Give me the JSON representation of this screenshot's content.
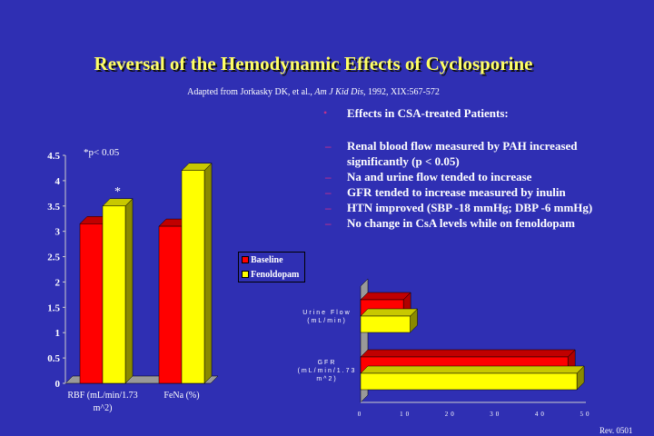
{
  "title": "Reversal of the Hemodynamic Effects of Cyclosporine",
  "citation": {
    "prefix": "Adapted from Jorkasky DK, et al., ",
    "journal": "Am J Kid Dis",
    "suffix": ", 1992, XIX:567-572"
  },
  "heading": "Effects in CSA-treated Patients:",
  "bullets": [
    "Renal blood flow measured by PAH increased significantly (p < 0.05)",
    "Na and urine flow tended to increase",
    "GFR tended to increase measured by inulin",
    "HTN improved (SBP -18 mmHg; DBP -6 mmHg)",
    "No change in CsA levels while on fenoldopam"
  ],
  "footer": "Rev. 0501",
  "colors": {
    "baseline": "#ff0000",
    "fenoldopam": "#ffff00",
    "background": "#2f2fb3"
  },
  "chart_data": [
    {
      "type": "bar",
      "orientation": "vertical",
      "note": "*p< 0.05",
      "categories": [
        "RBF (mL/min/1.73 m^2)",
        "FeNa (%)"
      ],
      "series": [
        {
          "name": "Baseline",
          "values": [
            3.15,
            3.1
          ]
        },
        {
          "name": "Fenoldopam",
          "values": [
            3.5,
            4.2
          ]
        }
      ],
      "annotations": [
        {
          "category": "RBF (mL/min/1.73 m^2)",
          "series": "Fenoldopam",
          "text": "*"
        }
      ],
      "ylim": [
        0,
        4.5
      ],
      "yticks": [
        "0",
        "0.5",
        "1",
        "1.5",
        "2",
        "2.5",
        "3",
        "3.5",
        "4",
        "4.5"
      ],
      "legend": {
        "position": "right",
        "entries": [
          "Baseline",
          "Fenoldopam"
        ]
      }
    },
    {
      "type": "bar",
      "orientation": "horizontal",
      "categories": [
        "Urine Flow (mL/min)",
        "GFR (mL/min/1.73 m^2)"
      ],
      "series": [
        {
          "name": "Baseline",
          "values": [
            9.5,
            46
          ]
        },
        {
          "name": "Fenoldopam",
          "values": [
            11,
            48
          ]
        }
      ],
      "xlim": [
        0,
        50
      ],
      "xticks": [
        "0",
        "10",
        "20",
        "30",
        "40",
        "50"
      ]
    }
  ]
}
